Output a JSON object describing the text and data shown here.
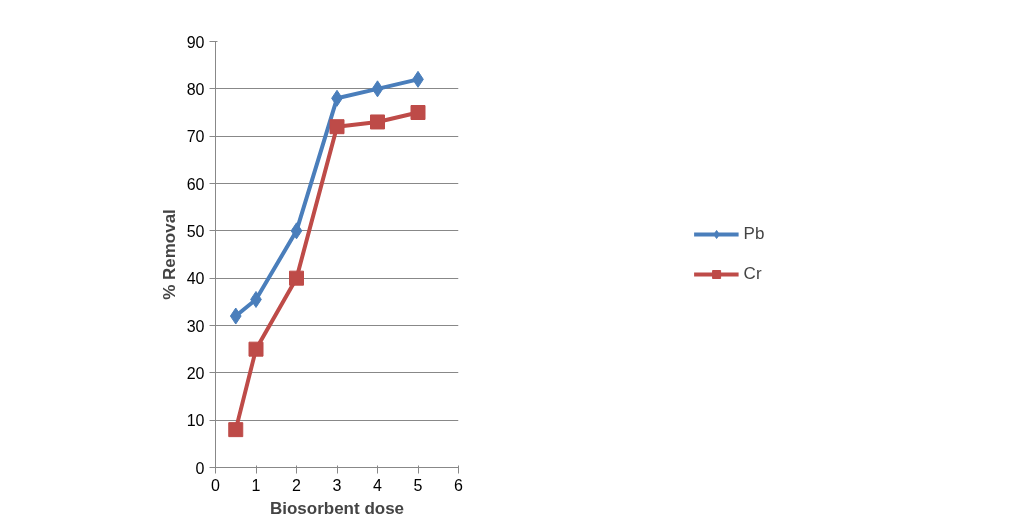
{
  "chart_data": {
    "type": "line",
    "xlabel": "Biosorbent dose",
    "ylabel": "% Removal",
    "x": [
      0.5,
      1,
      2,
      3,
      4,
      5
    ],
    "series": [
      {
        "name": "Pb",
        "color": "#4a7ebb",
        "values": [
          32,
          35.5,
          50,
          78,
          80,
          82
        ],
        "marker": "diamond"
      },
      {
        "name": "Cr",
        "color": "#be4b48",
        "values": [
          8,
          25,
          40,
          72,
          73,
          75
        ],
        "marker": "square"
      }
    ],
    "xlim": [
      0,
      6
    ],
    "xticks": [
      0,
      1,
      2,
      3,
      4,
      5,
      6
    ],
    "ylim": [
      0,
      90
    ],
    "yticks": [
      0,
      10,
      20,
      30,
      40,
      50,
      60,
      70,
      80,
      90
    ],
    "grid": "y",
    "legend": "right",
    "line_style": "solid"
  }
}
